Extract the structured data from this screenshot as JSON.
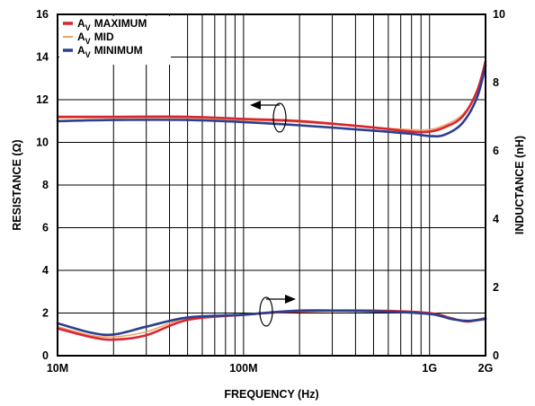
{
  "chart_data": {
    "type": "line",
    "xscale": "log",
    "xlim": [
      10000000,
      2000000000
    ],
    "xlabel": "FREQUENCY (Hz)",
    "x_ticks": [
      {
        "value": 10000000,
        "label": "10M"
      },
      {
        "value": 100000000,
        "label": "100M"
      },
      {
        "value": 1000000000,
        "label": "1G"
      },
      {
        "value": 2000000000,
        "label": "2G"
      }
    ],
    "y_left": {
      "label": "RESISTANCE (Ω)",
      "lim": [
        0,
        16
      ],
      "ticks": [
        "0",
        "2",
        "4",
        "6",
        "8",
        "10",
        "12",
        "14",
        "16"
      ]
    },
    "y_right": {
      "label": "INDUCTANCE (nH)",
      "lim": [
        0,
        10
      ],
      "ticks": [
        "0",
        "2",
        "4",
        "6",
        "8",
        "10"
      ]
    },
    "grid": true,
    "legend_position": "top-left",
    "series": [
      {
        "name": "MAXIMUM",
        "color": "#d7262e",
        "axis": "left",
        "quantity": "resistance",
        "x": [
          10000000,
          20000000,
          50000000,
          100000000,
          200000000,
          500000000,
          800000000,
          1000000000,
          1200000000,
          1500000000,
          1800000000,
          2000000000
        ],
        "y": [
          11.2,
          11.2,
          11.2,
          11.1,
          11.0,
          10.7,
          10.5,
          10.5,
          10.7,
          11.2,
          12.4,
          13.8
        ]
      },
      {
        "name": "MID",
        "color": "#f0a46a",
        "axis": "left",
        "quantity": "resistance",
        "x": [
          10000000,
          20000000,
          50000000,
          100000000,
          200000000,
          500000000,
          800000000,
          1000000000,
          1200000000,
          1500000000,
          1800000000,
          2000000000
        ],
        "y": [
          11.15,
          11.15,
          11.15,
          11.05,
          10.95,
          10.7,
          10.6,
          10.6,
          10.8,
          11.3,
          12.3,
          13.6
        ]
      },
      {
        "name": "MINIMUM",
        "color": "#2b3f8f",
        "axis": "left",
        "quantity": "resistance",
        "x": [
          10000000,
          20000000,
          50000000,
          100000000,
          200000000,
          500000000,
          800000000,
          1000000000,
          1200000000,
          1500000000,
          1800000000,
          2000000000
        ],
        "y": [
          11.0,
          11.05,
          11.05,
          10.95,
          10.8,
          10.55,
          10.4,
          10.3,
          10.35,
          10.9,
          12.1,
          13.6
        ]
      },
      {
        "name": "MAXIMUM",
        "color": "#d7262e",
        "axis": "right",
        "quantity": "inductance",
        "x": [
          10000000,
          15000000,
          20000000,
          30000000,
          50000000,
          100000000,
          200000000,
          500000000,
          1000000000,
          1300000000,
          1600000000,
          2000000000
        ],
        "y": [
          0.8,
          0.55,
          0.47,
          0.6,
          1.05,
          1.2,
          1.3,
          1.32,
          1.25,
          1.1,
          1.0,
          1.1
        ]
      },
      {
        "name": "MID",
        "color": "#f0a46a",
        "axis": "right",
        "quantity": "inductance",
        "x": [
          10000000,
          15000000,
          20000000,
          30000000,
          50000000,
          100000000,
          200000000,
          500000000,
          1000000000,
          1300000000,
          1600000000,
          2000000000
        ],
        "y": [
          0.85,
          0.6,
          0.55,
          0.7,
          1.1,
          1.2,
          1.3,
          1.3,
          1.25,
          1.1,
          1.0,
          1.05
        ]
      },
      {
        "name": "MINIMUM",
        "color": "#2b3f8f",
        "axis": "right",
        "quantity": "inductance",
        "x": [
          10000000,
          15000000,
          20000000,
          30000000,
          50000000,
          100000000,
          200000000,
          500000000,
          1000000000,
          1300000000,
          1600000000,
          2000000000
        ],
        "y": [
          0.95,
          0.68,
          0.62,
          0.85,
          1.12,
          1.2,
          1.32,
          1.3,
          1.22,
          1.08,
          1.02,
          1.08
        ]
      }
    ],
    "legend": {
      "entries": [
        {
          "prefix": "A",
          "sub": "V",
          "label": "MAXIMUM",
          "color": "#d7262e"
        },
        {
          "prefix": "A",
          "sub": "V",
          "label": "MID",
          "color": "#f0a46a"
        },
        {
          "prefix": "A",
          "sub": "V",
          "label": "MINIMUM",
          "color": "#2b3f8f"
        }
      ]
    },
    "annotations": [
      {
        "text": "arrow-left-icon",
        "points_to": "left axis (resistance curves)"
      },
      {
        "text": "arrow-right-icon",
        "points_to": "right axis (inductance curves)"
      }
    ]
  }
}
